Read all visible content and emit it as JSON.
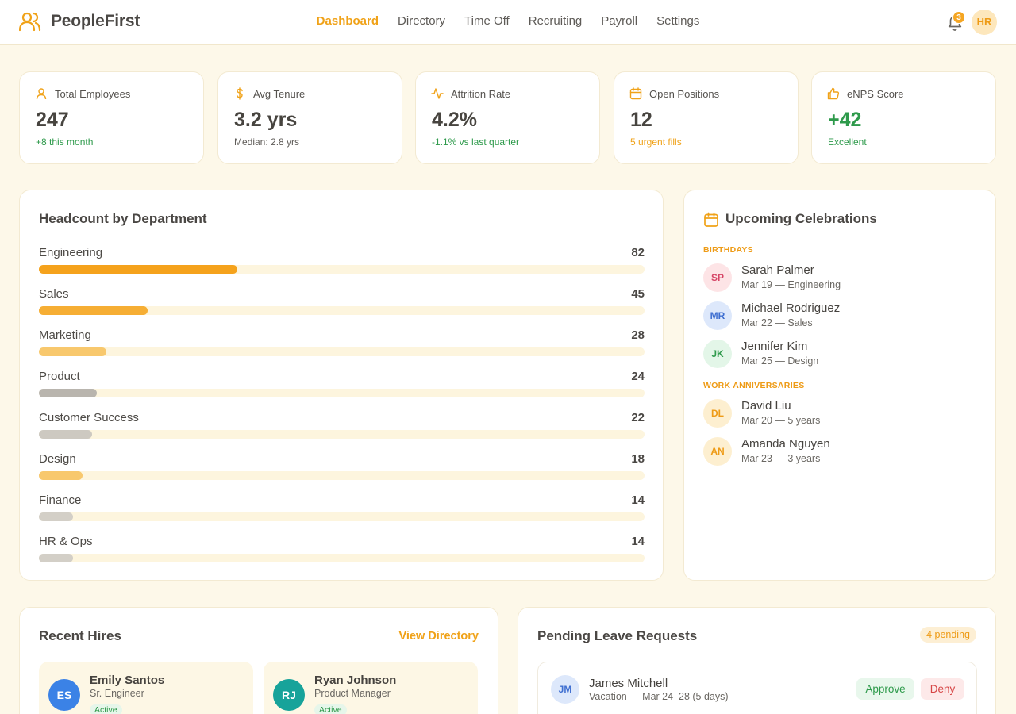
{
  "app": {
    "brand": "PeopleFirst",
    "nav": [
      "Dashboard",
      "Directory",
      "Time Off",
      "Recruiting",
      "Payroll",
      "Settings"
    ],
    "active_nav": "Dashboard",
    "notification_count": "3",
    "user_initials": "HR"
  },
  "stats": [
    {
      "label": "Total Employees",
      "value": "247",
      "sub": "+8 this month",
      "icon": "user-icon"
    },
    {
      "label": "Avg Tenure",
      "value": "3.2 yrs",
      "sub": "Median: 2.8 yrs",
      "icon": "dollar-icon"
    },
    {
      "label": "Attrition Rate",
      "value": "4.2%",
      "sub": "-1.1% vs last quarter",
      "icon": "activity-icon"
    },
    {
      "label": "Open Positions",
      "value": "12",
      "sub": "5 urgent fills",
      "icon": "calendar-icon"
    },
    {
      "label": "eNPS Score",
      "value": "+42",
      "sub": "Excellent",
      "icon": "thumbs-up-icon"
    }
  ],
  "headcount": {
    "title": "Headcount by Department",
    "max": 250,
    "departments": [
      {
        "name": "Engineering",
        "count": 82,
        "color": "#f5a21c"
      },
      {
        "name": "Sales",
        "count": 45,
        "color": "#f6ae34"
      },
      {
        "name": "Marketing",
        "count": 28,
        "color": "#f8c86d"
      },
      {
        "name": "Product",
        "count": 24,
        "color": "#b9b5ae"
      },
      {
        "name": "Customer Success",
        "count": 22,
        "color": "#cdc9c1"
      },
      {
        "name": "Design",
        "count": 18,
        "color": "#f8c86d"
      },
      {
        "name": "Finance",
        "count": 14,
        "color": "#d3cfc7"
      },
      {
        "name": "HR & Ops",
        "count": 14,
        "color": "#d3cfc7"
      }
    ]
  },
  "celebrations": {
    "title": "Upcoming Celebrations",
    "birthdays_label": "BIRTHDAYS",
    "birthdays": [
      {
        "initials": "SP",
        "name": "Sarah Palmer",
        "detail": "Mar 19 — Engineering",
        "bg": "#fde4e6",
        "fg": "#d64566"
      },
      {
        "initials": "MR",
        "name": "Michael Rodriguez",
        "detail": "Mar 22 — Sales",
        "bg": "#dde8fb",
        "fg": "#3f6fd1"
      },
      {
        "initials": "JK",
        "name": "Jennifer Kim",
        "detail": "Mar 25 — Design",
        "bg": "#e3f6e8",
        "fg": "#2e9a4b"
      }
    ],
    "anniversaries_label": "WORK ANNIVERSARIES",
    "anniversaries": [
      {
        "initials": "DL",
        "name": "David Liu",
        "detail": "Mar 20 — 5 years",
        "bg": "#fdefd0",
        "fg": "#ee9b16"
      },
      {
        "initials": "AN",
        "name": "Amanda Nguyen",
        "detail": "Mar 23 — 3 years",
        "bg": "#fdefd0",
        "fg": "#ee9b16"
      }
    ]
  },
  "recent_hires": {
    "title": "Recent Hires",
    "link": "View Directory",
    "hires": [
      {
        "initials": "ES",
        "name": "Emily Santos",
        "role": "Sr. Engineer",
        "status": "Active",
        "color": "#3b82e6"
      },
      {
        "initials": "RJ",
        "name": "Ryan Johnson",
        "role": "Product Manager",
        "status": "Active",
        "color": "#17a39a"
      }
    ]
  },
  "leave": {
    "title": "Pending Leave Requests",
    "badge": "4 pending",
    "items": [
      {
        "initials": "JM",
        "name": "James Mitchell",
        "detail": "Vacation — Mar 24–28 (5 days)",
        "approve": "Approve",
        "deny": "Deny"
      }
    ]
  }
}
